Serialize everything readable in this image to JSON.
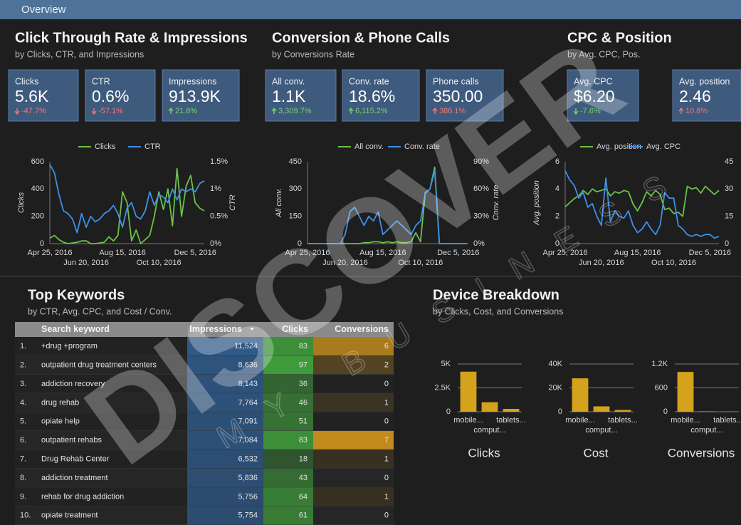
{
  "header": {
    "title": "Overview"
  },
  "sections": [
    {
      "title": "Click Through Rate & Impressions",
      "subtitle": "by Clicks, CTR, and Impressions",
      "scorecards": [
        {
          "label": "Clicks",
          "value": "5.6K",
          "delta": "-47.7%",
          "trend": "down",
          "tone": "bad"
        },
        {
          "label": "CTR",
          "value": "0.6%",
          "delta": "-57.1%",
          "trend": "down",
          "tone": "bad"
        },
        {
          "label": "Impressions",
          "value": "913.9K",
          "delta": "21.8%",
          "trend": "up",
          "tone": "good"
        }
      ]
    },
    {
      "title": "Conversion & Phone Calls",
      "subtitle": "by Conversions Rate",
      "scorecards": [
        {
          "label": "All conv.",
          "value": "1.1K",
          "delta": "3,309.7%",
          "trend": "up",
          "tone": "good"
        },
        {
          "label": "Conv. rate",
          "value": "18.6%",
          "delta": "6,115.2%",
          "trend": "up",
          "tone": "good"
        },
        {
          "label": "Phone calls",
          "value": "350.00",
          "delta": "386.1%",
          "trend": "up",
          "tone": "bad"
        }
      ]
    },
    {
      "title": "CPC & Position",
      "subtitle": "by Avg. CPC, Pos.",
      "scorecards": [
        {
          "label": "Avg. CPC",
          "value": "$6.20",
          "delta": "-7.6%",
          "trend": "down",
          "tone": "good"
        },
        {
          "label": "Avg. position",
          "value": "2.46",
          "delta": "10.8%",
          "trend": "up",
          "tone": "bad"
        }
      ]
    }
  ],
  "chart_data": [
    {
      "type": "line",
      "ylabel": "Clicks",
      "y2label": "CTR",
      "categories": [
        "Apr 25, 2016",
        null,
        null,
        null,
        null,
        null,
        null,
        null,
        "Jun 20, 2016",
        null,
        null,
        null,
        null,
        null,
        null,
        null,
        "Aug 15, 2016",
        null,
        null,
        null,
        null,
        null,
        null,
        null,
        "Oct 10, 2016",
        null,
        null,
        null,
        null,
        null,
        null,
        null,
        "Dec 5, 2016",
        null,
        null
      ],
      "series": [
        {
          "name": "Clicks",
          "color": "#6cc04a",
          "values": [
            40,
            60,
            30,
            10,
            0,
            5,
            10,
            20,
            20,
            0,
            0,
            5,
            10,
            50,
            20,
            60,
            380,
            300,
            20,
            100,
            0,
            30,
            60,
            200,
            380,
            250,
            400,
            130,
            550,
            200,
            420,
            500,
            300,
            260,
            240
          ]
        },
        {
          "name": "CTR",
          "color": "#3f8fe6",
          "axis": "y2",
          "values": [
            1.45,
            1.3,
            0.9,
            0.6,
            0.55,
            0.45,
            0.2,
            0.55,
            0.3,
            0.5,
            0.4,
            0.45,
            0.55,
            0.6,
            0.7,
            0.55,
            0.3,
            0.65,
            0.75,
            0.5,
            0.45,
            0.6,
            0.95,
            0.7,
            0.9,
            0.85,
            0.75,
            1.0,
            0.8,
            1.0,
            0.95,
            1.0,
            0.95,
            1.1,
            1.15
          ]
        }
      ],
      "ylim": [
        0,
        600
      ],
      "yticks": [
        0,
        200,
        400,
        600
      ],
      "y2lim": [
        0,
        1.5
      ],
      "y2ticks": [
        {
          "value": 0,
          "label": "0%"
        },
        {
          "value": 0.5,
          "label": "0.5%"
        },
        {
          "value": 1,
          "label": "1%"
        },
        {
          "value": 1.5,
          "label": "1.5%"
        }
      ],
      "grid": false,
      "legend": "top"
    },
    {
      "type": "line",
      "ylabel": "All conv.",
      "y2label": "Conv. rate",
      "categories": [
        "Apr 25, 2016",
        null,
        null,
        null,
        null,
        null,
        null,
        null,
        "Jun 20, 2016",
        null,
        null,
        null,
        null,
        null,
        null,
        null,
        "Aug 15, 2016",
        null,
        null,
        null,
        null,
        null,
        null,
        null,
        "Oct 10, 2016",
        null,
        null,
        null,
        null,
        null,
        null,
        null,
        "Dec 5, 2016",
        null,
        null
      ],
      "series": [
        {
          "name": "All conv.",
          "color": "#6cc04a",
          "values": [
            0,
            0,
            0,
            0,
            0,
            0,
            0,
            0,
            0,
            0,
            0,
            0,
            5,
            5,
            10,
            10,
            5,
            10,
            5,
            10,
            5,
            5,
            10,
            60,
            10,
            280,
            300,
            420,
            0,
            0,
            0,
            0,
            0,
            0,
            0
          ]
        },
        {
          "name": "Conv. rate",
          "color": "#3f8fe6",
          "axis": "y2",
          "values": [
            0,
            0,
            0,
            0,
            0,
            0,
            0,
            0,
            10,
            35,
            40,
            30,
            20,
            30,
            25,
            35,
            10,
            15,
            20,
            25,
            20,
            15,
            10,
            20,
            25,
            55,
            60,
            80,
            0,
            0,
            0,
            0,
            0,
            0,
            0
          ]
        }
      ],
      "ylim": [
        0,
        450
      ],
      "yticks": [
        0,
        150,
        300,
        450
      ],
      "y2lim": [
        0,
        90
      ],
      "y2ticks": [
        {
          "value": 0,
          "label": "0%"
        },
        {
          "value": 30,
          "label": "30%"
        },
        {
          "value": 60,
          "label": "60%"
        },
        {
          "value": 90,
          "label": "90%"
        }
      ],
      "grid": false,
      "legend": "top"
    },
    {
      "type": "line",
      "ylabel": "Avg. position",
      "categories": [
        "Apr 25, 2016",
        null,
        null,
        null,
        null,
        null,
        null,
        null,
        "Jun 20, 2016",
        null,
        null,
        null,
        null,
        null,
        null,
        null,
        "Aug 15, 2016",
        null,
        null,
        null,
        null,
        null,
        null,
        null,
        "Oct 10, 2016",
        null,
        null,
        null,
        null,
        null,
        null,
        null,
        "Dec 5, 2016",
        null,
        null
      ],
      "series": [
        {
          "name": "Avg. position",
          "color": "#6cc04a",
          "values": [
            2.7,
            3.0,
            3.3,
            3.5,
            3.9,
            3.6,
            4.0,
            3.8,
            3.9,
            4.0,
            3.5,
            3.8,
            3.7,
            3.9,
            3.8,
            2.9,
            2.4,
            3.0,
            3.8,
            3.5,
            3.9,
            3.6,
            2.5,
            2.6,
            2.2,
            2.3,
            2.0,
            4.2,
            4.0,
            4.1,
            3.7,
            4.2,
            3.9,
            3.6,
            3.9
          ]
        },
        {
          "name": "Avg. CPC",
          "color": "#3f8fe6",
          "axis": "y2",
          "values": [
            40,
            35,
            32,
            25,
            28,
            20,
            22,
            15,
            10,
            36,
            12,
            18,
            15,
            14,
            18,
            10,
            6,
            8,
            12,
            8,
            5,
            10,
            28,
            25,
            25,
            10,
            8,
            5,
            4,
            5,
            4,
            5,
            5,
            3,
            4
          ]
        }
      ],
      "ylim": [
        0,
        6
      ],
      "yticks": [
        0,
        2,
        4,
        6
      ],
      "y2lim": [
        0,
        45
      ],
      "y2ticks": [
        0,
        15,
        30,
        45
      ],
      "grid": false,
      "legend": "top"
    },
    {
      "type": "bar",
      "title": "Clicks",
      "categories": [
        "mobile...",
        "comput...",
        "tablets..."
      ],
      "values": [
        4200,
        1000,
        300
      ],
      "color": "#d4a21c",
      "ylim": [
        0,
        5000
      ],
      "yticks": [
        0,
        {
          "value": 2500,
          "label": "2.5K"
        },
        {
          "value": 5000,
          "label": "5K"
        }
      ],
      "grid": true
    },
    {
      "type": "bar",
      "title": "Cost",
      "categories": [
        "mobile...",
        "comput...",
        "tablets..."
      ],
      "values": [
        28000,
        4500,
        1500
      ],
      "color": "#d4a21c",
      "ylim": [
        0,
        40000
      ],
      "yticks": [
        0,
        {
          "value": 20000,
          "label": "20K"
        },
        {
          "value": 40000,
          "label": "40K"
        }
      ],
      "grid": true
    },
    {
      "type": "bar",
      "title": "Conversions",
      "categories": [
        "mobile...",
        "comput...",
        "tablets..."
      ],
      "values": [
        1000,
        10,
        5
      ],
      "color": "#d4a21c",
      "ylim": [
        0,
        1200
      ],
      "yticks": [
        0,
        600,
        {
          "value": 1200,
          "label": "1.2K"
        }
      ],
      "grid": true
    }
  ],
  "keywords": {
    "title": "Top Keywords",
    "subtitle": "by CTR, Avg. CPC, and Cost / Conv.",
    "columns": [
      "Search keyword",
      "Impressions",
      "Clicks",
      "Conversions"
    ],
    "rows": [
      [
        "1.",
        "+drug +program",
        "11,524",
        "83",
        "6"
      ],
      [
        "2.",
        "outpatient drug treatment centers",
        "8,636",
        "97",
        "2"
      ],
      [
        "3.",
        "addiction recovery",
        "8,143",
        "36",
        "0"
      ],
      [
        "4.",
        "drug rehab",
        "7,764",
        "46",
        "1"
      ],
      [
        "5.",
        "opiate help",
        "7,091",
        "51",
        "0"
      ],
      [
        "6.",
        "outpatient rehabs",
        "7,084",
        "83",
        "7"
      ],
      [
        "7.",
        "Drug Rehab Center",
        "6,532",
        "18",
        "1"
      ],
      [
        "8.",
        "addiction treatment",
        "5,836",
        "43",
        "0"
      ],
      [
        "9.",
        "rehab for drug addiction",
        "5,756",
        "64",
        "1"
      ],
      [
        "10.",
        "opiate treatment",
        "5,754",
        "61",
        "0"
      ]
    ]
  },
  "devices": {
    "title": "Device Breakdown",
    "subtitle": "by Clicks, Cost, and Conversions"
  },
  "watermark": {
    "main": "DISCOVER",
    "sub": "MY BUSINESS"
  }
}
